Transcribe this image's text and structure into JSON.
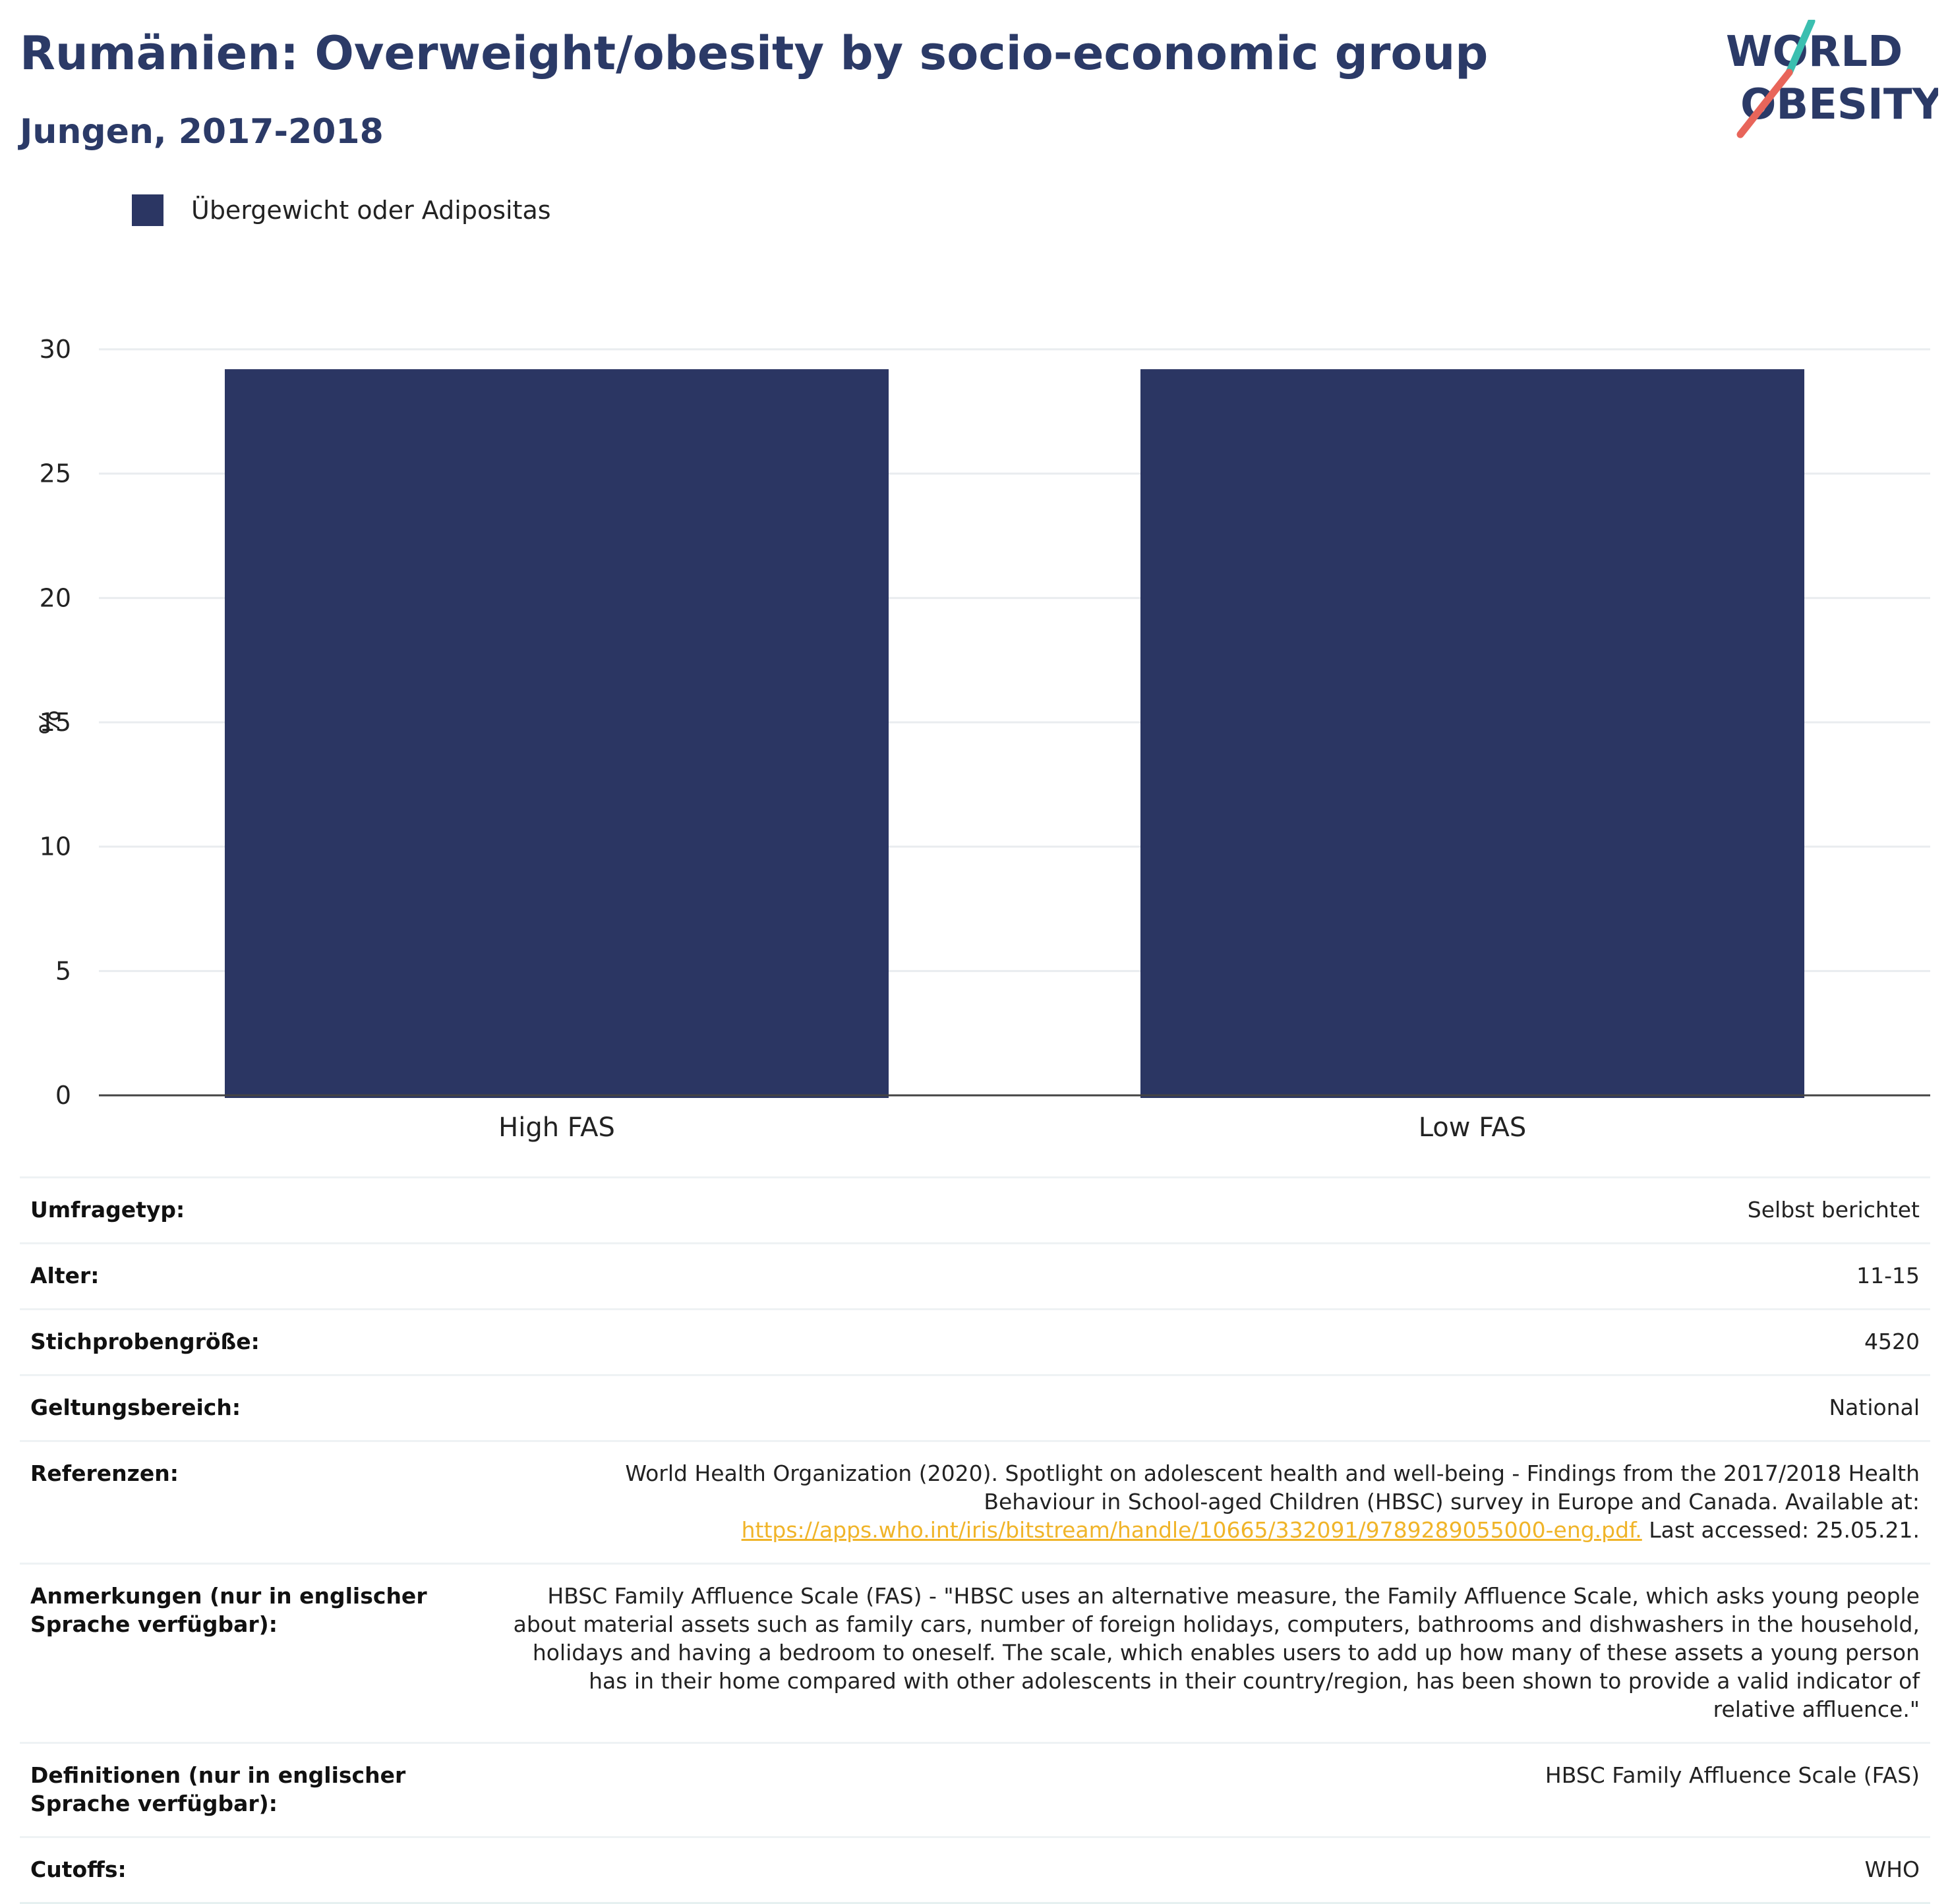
{
  "header": {
    "title": "Rumänien: Overweight/obesity by socio-economic group",
    "subtitle": "Jungen, 2017-2018"
  },
  "logo": {
    "text_line1": "WORLD",
    "text_line2": "OBESITY",
    "colors": {
      "text": "#2b3a67",
      "slash_top": "#3bbfb0",
      "slash_bottom": "#e8655a"
    }
  },
  "colors": {
    "bar": "#2b3663",
    "grid": "#e9ecef",
    "axis": "#444444"
  },
  "chart_data": {
    "type": "bar",
    "categories": [
      "High FAS",
      "Low FAS"
    ],
    "series": [
      {
        "name": "Übergewicht oder Adipositas",
        "values": [
          29.2,
          29.2
        ]
      }
    ],
    "ylabel": "%",
    "ylim": [
      0,
      30
    ],
    "yticks": [
      0,
      5,
      10,
      15,
      20,
      25,
      30
    ],
    "grid": true,
    "legend": "top-left"
  },
  "info": {
    "survey_type": {
      "label": "Umfragetyp:",
      "value": "Selbst berichtet"
    },
    "age": {
      "label": "Alter:",
      "value": "11-15"
    },
    "sample_size": {
      "label": "Stichprobengröße:",
      "value": "4520"
    },
    "scope": {
      "label": "Geltungsbereich:",
      "value": "National"
    },
    "references": {
      "label": "Referenzen:",
      "text": "World Health Organization (2020). Spotlight on adolescent health and well-being - Findings from the 2017/2018 Health Behaviour in School-aged Children (HBSC) survey in Europe and Canada. Available at:",
      "link": "https://apps.who.int/iris/bitstream/handle/10665/332091/9789289055000-eng.pdf.",
      "suffix": " Last accessed: 25.05.21."
    },
    "notes": {
      "label": "Anmerkungen (nur in englischer Sprache verfügbar):",
      "value": "HBSC Family Affluence Scale (FAS) - \"HBSC uses an alternative measure, the Family Affluence Scale, which asks young people about material assets such as family cars, number of foreign holidays, computers, bathrooms and dishwashers in the household, holidays and having a bedroom to oneself. The scale, which enables users to add up how many of these assets a young person has in their home compared with other adolescents in their country/region, has been shown to provide a valid indicator of relative affluence.\""
    },
    "definitions": {
      "label": "Definitionen (nur in englischer Sprache verfügbar):",
      "value": "HBSC Family Affluence Scale (FAS)"
    },
    "cutoffs": {
      "label": "Cutoffs:",
      "value": "WHO"
    }
  }
}
